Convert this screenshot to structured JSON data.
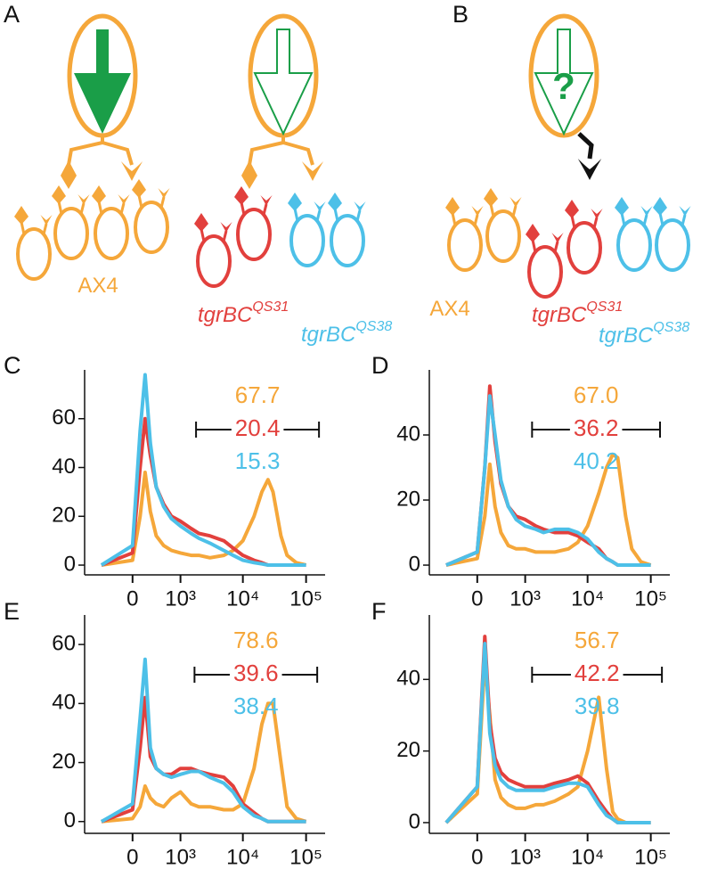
{
  "diagrams": [
    {
      "label": "A",
      "strain_labels": [
        {
          "text": "AX4"
        },
        {
          "text": "tgrBC",
          "sup": "QS31"
        },
        {
          "text": "tgrBC",
          "sup": "QS38"
        }
      ]
    },
    {
      "label": "B",
      "mark": "?",
      "strain_labels": [
        {
          "text": "AX4"
        },
        {
          "text": "tgrBC",
          "sup": "QS31"
        },
        {
          "text": "tgrBC",
          "sup": "QS38"
        }
      ]
    }
  ],
  "chart_data": [
    {
      "type": "line",
      "label": "C",
      "x": [
        -500,
        0,
        100,
        170,
        250,
        350,
        500,
        700,
        1000,
        1500,
        2000,
        3000,
        5000,
        7000,
        10000,
        15000,
        20000,
        25000,
        30000,
        40000,
        50000,
        70000,
        100000
      ],
      "xlim": [
        -1000,
        200000
      ],
      "xticks": [
        0,
        {
          "value": 1000,
          "label": "10³"
        },
        {
          "value": 10000,
          "label": "10⁴"
        },
        {
          "value": 100000,
          "label": "10⁵"
        }
      ],
      "ylim": [
        -4,
        80
      ],
      "yticks": [
        0,
        20,
        40,
        60
      ],
      "gate_x": [
        1800,
        160000
      ],
      "series": [
        {
          "color": "#f5a73a",
          "gate_percent": 67.7,
          "values": [
            0,
            2,
            20,
            38,
            22,
            12,
            8,
            6,
            5,
            4,
            4,
            3,
            4,
            6,
            10,
            20,
            30,
            35,
            30,
            12,
            4,
            1,
            0
          ]
        },
        {
          "color": "#e2403d",
          "gate_percent": 20.4,
          "values": [
            0,
            5,
            40,
            60,
            45,
            32,
            25,
            20,
            18,
            15,
            13,
            12,
            10,
            7,
            4,
            2,
            1,
            0,
            0,
            0,
            0,
            0,
            0
          ]
        },
        {
          "color": "#4dc0e8",
          "gate_percent": 15.3,
          "values": [
            0,
            8,
            55,
            78,
            50,
            32,
            24,
            19,
            16,
            13,
            11,
            9,
            6,
            4,
            2,
            1,
            0.5,
            0,
            0,
            0,
            0,
            0,
            0
          ]
        }
      ]
    },
    {
      "type": "line",
      "label": "D",
      "x": [
        -500,
        0,
        100,
        170,
        250,
        350,
        500,
        700,
        1000,
        1500,
        2000,
        3000,
        5000,
        7000,
        10000,
        15000,
        20000,
        25000,
        30000,
        40000,
        50000,
        70000,
        100000
      ],
      "xlim": [
        -1000,
        200000
      ],
      "xticks": [
        0,
        {
          "value": 1000,
          "label": "10³"
        },
        {
          "value": 10000,
          "label": "10⁴"
        },
        {
          "value": 100000,
          "label": "10⁵"
        }
      ],
      "ylim": [
        -3,
        60
      ],
      "yticks": [
        0,
        20,
        40
      ],
      "gate_x": [
        1300,
        140000
      ],
      "series": [
        {
          "color": "#f5a73a",
          "gate_percent": 67.0,
          "gate_percent_label": "67.0",
          "values": [
            0,
            2,
            15,
            31,
            18,
            10,
            6,
            5,
            5,
            4,
            4,
            4,
            5,
            7,
            12,
            22,
            30,
            34,
            33,
            15,
            5,
            1,
            0
          ]
        },
        {
          "color": "#e2403d",
          "gate_percent": 36.2,
          "values": [
            0,
            4,
            30,
            55,
            38,
            25,
            18,
            15,
            14,
            12,
            11,
            10,
            10,
            9,
            7,
            5,
            2,
            1,
            0,
            0,
            0,
            0,
            0
          ]
        },
        {
          "color": "#4dc0e8",
          "gate_percent": 40.2,
          "values": [
            0,
            4,
            30,
            52,
            40,
            26,
            18,
            14,
            12,
            11,
            10,
            11,
            11,
            10,
            8,
            4,
            2,
            1,
            0,
            0,
            0,
            0,
            0
          ]
        }
      ]
    },
    {
      "type": "line",
      "label": "E",
      "x": [
        -500,
        0,
        100,
        170,
        250,
        350,
        500,
        700,
        1000,
        1500,
        2000,
        3000,
        5000,
        7000,
        10000,
        15000,
        20000,
        25000,
        30000,
        40000,
        50000,
        70000,
        100000
      ],
      "xlim": [
        -1000,
        200000
      ],
      "xticks": [
        0,
        {
          "value": 1000,
          "label": "10³"
        },
        {
          "value": 10000,
          "label": "10⁴"
        },
        {
          "value": 100000,
          "label": "10⁵"
        }
      ],
      "ylim": [
        -4,
        70
      ],
      "yticks": [
        0,
        20,
        40,
        60
      ],
      "gate_x": [
        1700,
        150000
      ],
      "series": [
        {
          "color": "#f5a73a",
          "gate_percent": 78.6,
          "values": [
            0,
            1,
            5,
            12,
            8,
            6,
            5,
            8,
            10,
            6,
            5,
            5,
            4,
            4,
            6,
            18,
            33,
            40,
            40,
            20,
            5,
            1,
            0
          ]
        },
        {
          "color": "#e2403d",
          "gate_percent": 39.6,
          "values": [
            0,
            4,
            25,
            42,
            22,
            18,
            16,
            16,
            18,
            18,
            17,
            16,
            15,
            12,
            6,
            3,
            1,
            0,
            0,
            0,
            0,
            0,
            0
          ]
        },
        {
          "color": "#4dc0e8",
          "gate_percent": 38.4,
          "values": [
            0,
            6,
            35,
            55,
            25,
            18,
            16,
            15,
            16,
            17,
            17,
            15,
            13,
            10,
            5,
            2,
            1,
            0,
            0,
            0,
            0,
            0,
            0
          ]
        }
      ]
    },
    {
      "type": "line",
      "label": "F",
      "x": [
        -500,
        0,
        100,
        170,
        250,
        350,
        500,
        700,
        1000,
        1500,
        2000,
        3000,
        5000,
        7000,
        10000,
        15000,
        20000,
        25000,
        30000,
        40000,
        50000,
        70000,
        100000
      ],
      "xlim": [
        -1000,
        200000
      ],
      "xticks": [
        0,
        {
          "value": 1000,
          "label": "10³"
        },
        {
          "value": 10000,
          "label": "10⁴"
        },
        {
          "value": 100000,
          "label": "10⁵"
        }
      ],
      "ylim": [
        -3,
        58
      ],
      "yticks": [
        0,
        20,
        40
      ],
      "gate_x": [
        1300,
        150000
      ],
      "series": [
        {
          "color": "#f5a73a",
          "gate_percent": 56.7,
          "values": [
            0,
            8,
            45,
            30,
            12,
            7,
            5,
            4,
            4,
            5,
            5,
            6,
            8,
            10,
            20,
            35,
            15,
            3,
            1,
            0,
            0,
            0,
            0
          ]
        },
        {
          "color": "#e2403d",
          "gate_percent": 42.2,
          "values": [
            0,
            10,
            52,
            28,
            18,
            14,
            12,
            11,
            10,
            10,
            10,
            11,
            12,
            13,
            11,
            6,
            3,
            1,
            0,
            0,
            0,
            0,
            0
          ]
        },
        {
          "color": "#4dc0e8",
          "gate_percent": 39.8,
          "values": [
            0,
            10,
            50,
            25,
            16,
            12,
            10,
            9,
            9,
            9,
            9,
            10,
            11,
            11,
            10,
            5,
            2,
            1,
            0,
            0,
            0,
            0,
            0
          ]
        }
      ]
    }
  ]
}
